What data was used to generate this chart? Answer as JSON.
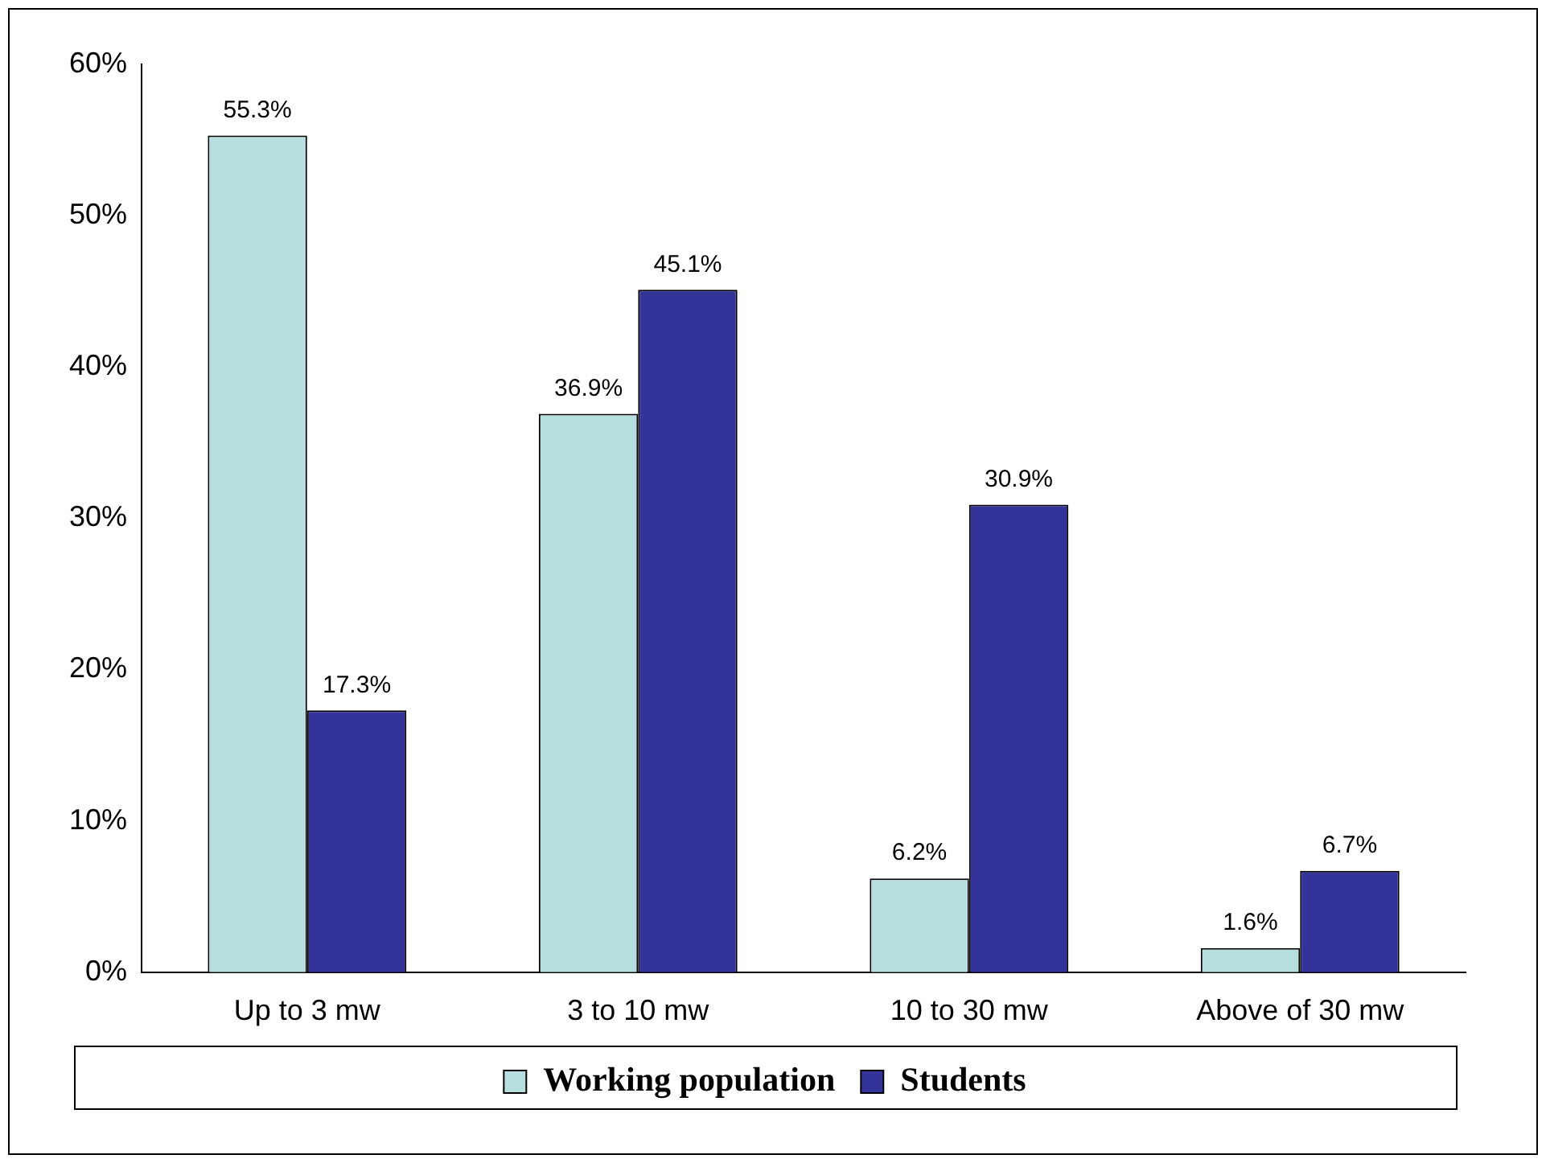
{
  "chart_data": {
    "type": "bar",
    "categories": [
      "Up to 3 mw",
      "3 to 10 mw",
      "10 to 30 mw",
      "Above of 30 mw"
    ],
    "series": [
      {
        "name": "Working population",
        "color": "#b8dfe0",
        "values": [
          55.3,
          36.9,
          6.2,
          1.6
        ],
        "value_labels": [
          "55.3%",
          "36.9%",
          "6.2%",
          "1.6%"
        ]
      },
      {
        "name": "Students",
        "color": "#333399",
        "values": [
          17.3,
          45.1,
          30.9,
          6.7
        ],
        "value_labels": [
          "17.3%",
          "45.1%",
          "30.9%",
          "6.7%"
        ]
      }
    ],
    "ylim": [
      0,
      60
    ],
    "yticks": [
      {
        "value": 0,
        "label": "0%"
      },
      {
        "value": 10,
        "label": "10%"
      },
      {
        "value": 20,
        "label": "20%"
      },
      {
        "value": 30,
        "label": "30%"
      },
      {
        "value": 40,
        "label": "40%"
      },
      {
        "value": 50,
        "label": "50%"
      },
      {
        "value": 60,
        "label": "60%"
      }
    ],
    "grid": false,
    "legend": "bottom"
  }
}
